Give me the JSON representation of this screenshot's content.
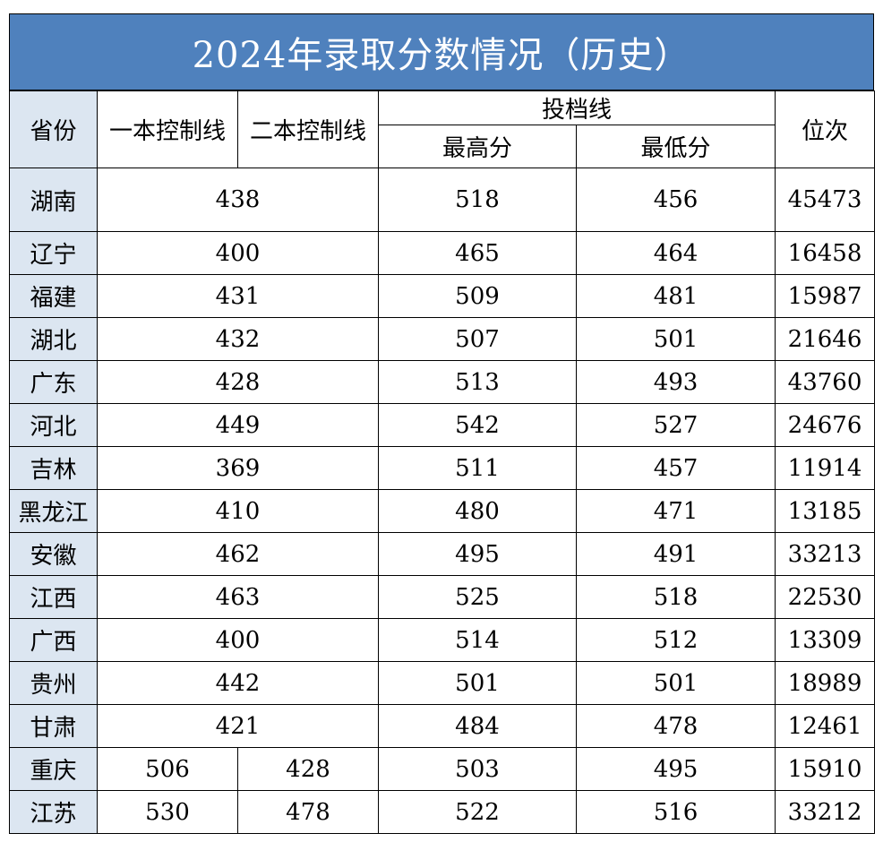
{
  "title": "2024年录取分数情况（历史）",
  "headers": {
    "province": "省份",
    "line1": "一本控制线",
    "line2": "二本控制线",
    "admission": "投档线",
    "max": "最高分",
    "min": "最低分",
    "rank": "位次"
  },
  "rows": [
    {
      "province": "湖南",
      "control": "438",
      "max": "518",
      "min": "456",
      "rank": "45473"
    },
    {
      "province": "辽宁",
      "control": "400",
      "max": "465",
      "min": "464",
      "rank": "16458"
    },
    {
      "province": "福建",
      "control": "431",
      "max": "509",
      "min": "481",
      "rank": "15987"
    },
    {
      "province": "湖北",
      "control": "432",
      "max": "507",
      "min": "501",
      "rank": "21646"
    },
    {
      "province": "广东",
      "control": "428",
      "max": "513",
      "min": "493",
      "rank": "43760"
    },
    {
      "province": "河北",
      "control": "449",
      "max": "542",
      "min": "527",
      "rank": "24676"
    },
    {
      "province": "吉林",
      "control": "369",
      "max": "511",
      "min": "457",
      "rank": "11914"
    },
    {
      "province": "黑龙江",
      "control": "410",
      "max": "480",
      "min": "471",
      "rank": "13185"
    },
    {
      "province": "安徽",
      "control": "462",
      "max": "495",
      "min": "491",
      "rank": "33213"
    },
    {
      "province": "江西",
      "control": "463",
      "max": "525",
      "min": "518",
      "rank": "22530"
    },
    {
      "province": "广西",
      "control": "400",
      "max": "514",
      "min": "512",
      "rank": "13309"
    },
    {
      "province": "贵州",
      "control": "442",
      "max": "501",
      "min": "501",
      "rank": "18989"
    },
    {
      "province": "甘肃",
      "control": "421",
      "max": "484",
      "min": "478",
      "rank": "12461"
    },
    {
      "province": "重庆",
      "line1": "506",
      "line2": "428",
      "max": "503",
      "min": "495",
      "rank": "15910"
    },
    {
      "province": "江苏",
      "line1": "530",
      "line2": "478",
      "max": "522",
      "min": "516",
      "rank": "33212"
    }
  ]
}
